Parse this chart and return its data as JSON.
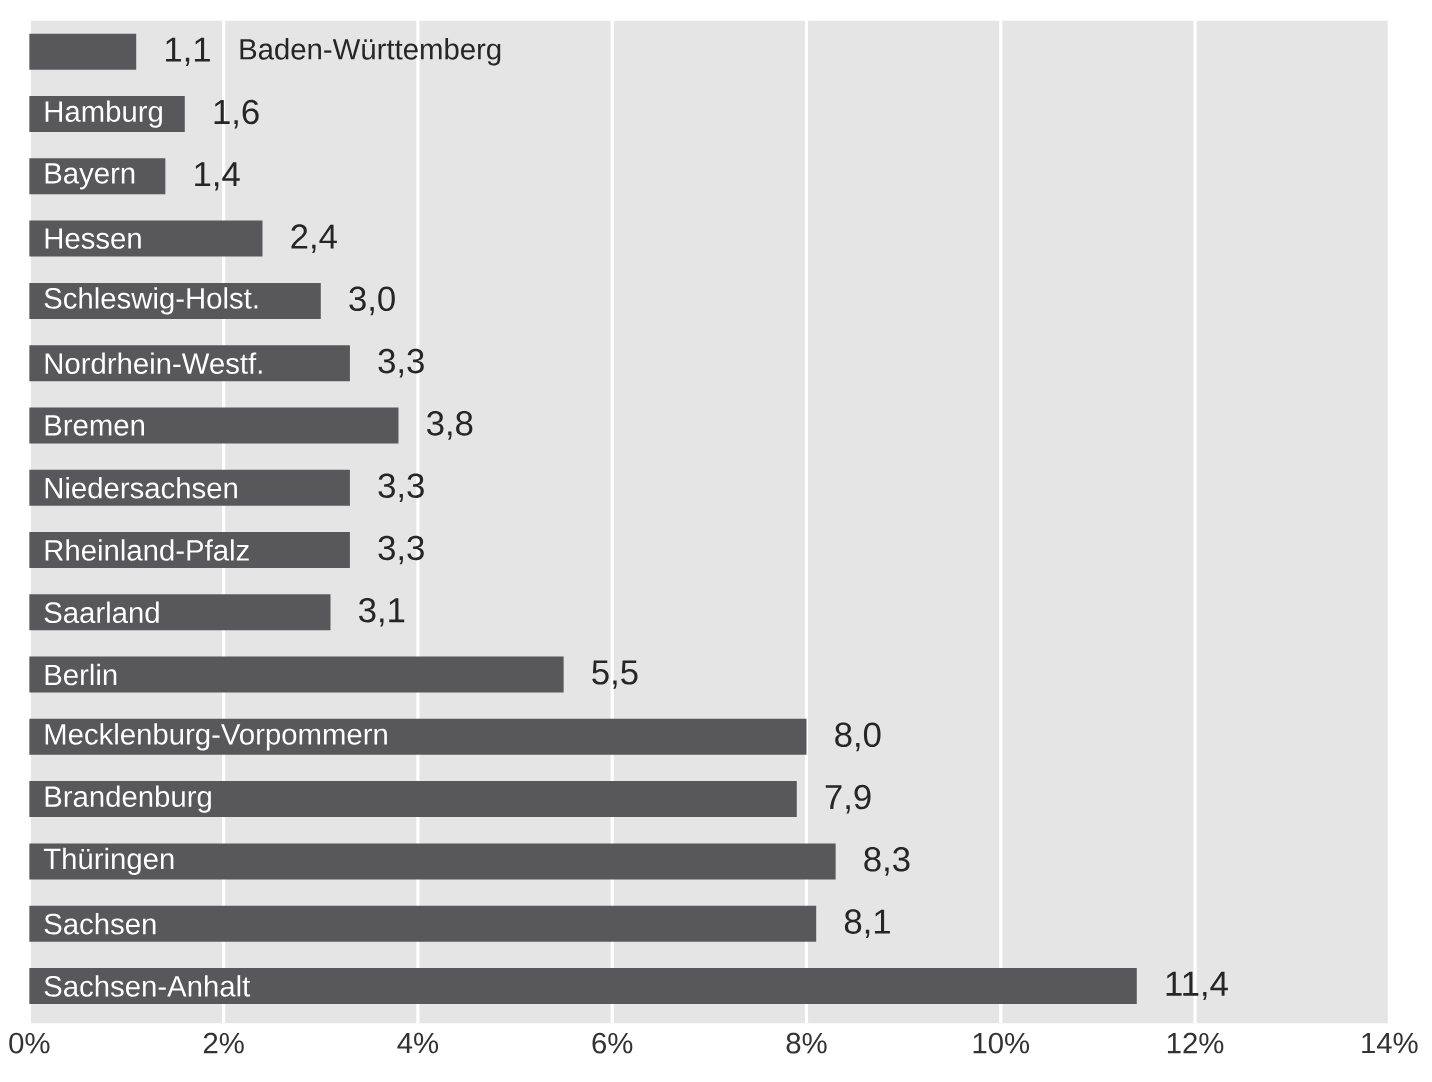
{
  "chart_data": {
    "type": "bar",
    "orientation": "horizontal",
    "categories": [
      "Baden-Württemberg",
      "Hamburg",
      "Bayern",
      "Hessen",
      "Schleswig-Holst.",
      "Nordrhein-Westf.",
      "Bremen",
      "Niedersachsen",
      "Rheinland-Pfalz",
      "Saarland",
      "Berlin",
      "Mecklenburg-Vorpommern",
      "Brandenburg",
      "Thüringen",
      "Sachsen",
      "Sachsen-Anhalt"
    ],
    "values": [
      1.1,
      1.6,
      1.4,
      2.4,
      3.0,
      3.3,
      3.8,
      3.3,
      3.3,
      3.1,
      5.5,
      8.0,
      7.9,
      8.3,
      8.1,
      11.4
    ],
    "value_labels": [
      "1,1",
      "1,6",
      "1,4",
      "2,4",
      "3,0",
      "3,3",
      "3,8",
      "3,3",
      "3,3",
      "3,1",
      "5,5",
      "8,0",
      "7,9",
      "8,3",
      "8,1",
      "11,4"
    ],
    "color": "#58585a",
    "xlim": [
      0,
      14
    ],
    "xticks": [
      {
        "value": 0,
        "label": "0%"
      },
      {
        "value": 2,
        "label": "2%"
      },
      {
        "value": 4,
        "label": "4%"
      },
      {
        "value": 6,
        "label": "6%"
      },
      {
        "value": 8,
        "label": "8%"
      },
      {
        "value": 10,
        "label": "10%"
      },
      {
        "value": 12,
        "label": "12%"
      },
      {
        "value": 14,
        "label": "14%"
      }
    ],
    "grid": "x"
  }
}
